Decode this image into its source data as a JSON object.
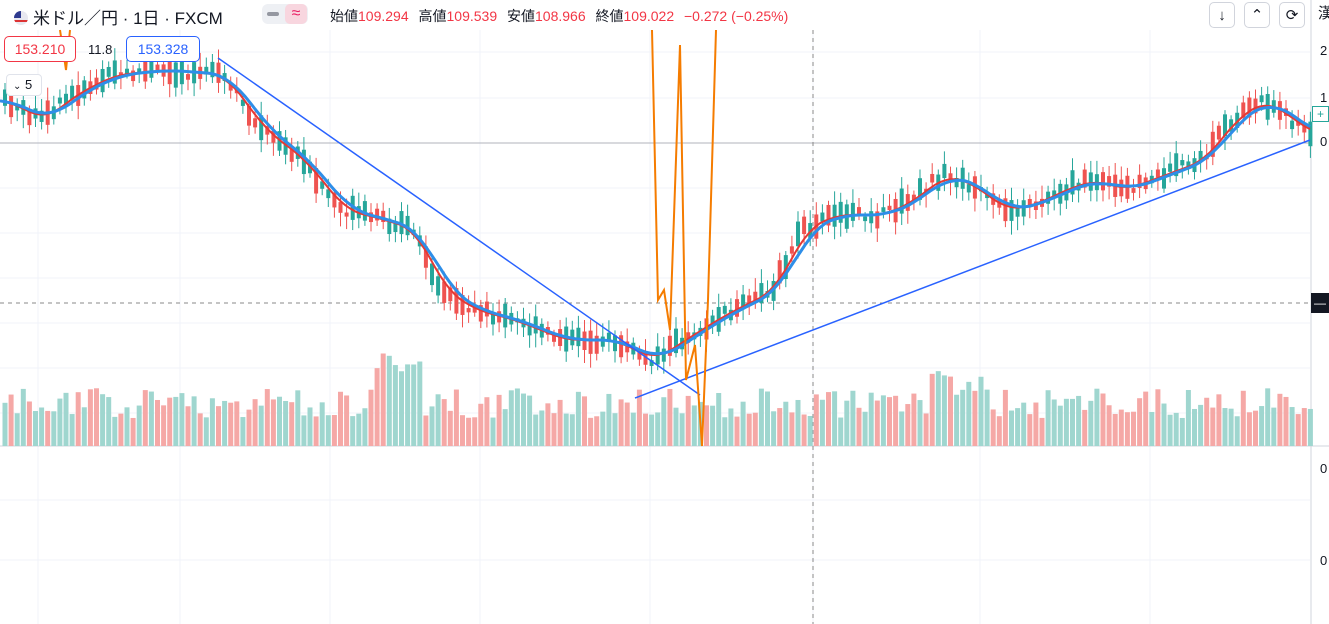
{
  "header": {
    "symbol_title": "米ドル／円 · 1日 · FXCM",
    "indicator_icon": "wave-icon",
    "ohlc": [
      {
        "label": "始値",
        "value": "109.294"
      },
      {
        "label": "高値",
        "value": "109.539"
      },
      {
        "label": "安値",
        "value": "108.966"
      },
      {
        "label": "終値",
        "value": "109.022"
      }
    ],
    "change": "−0.272 (−0.25%)",
    "corner_char": "漢"
  },
  "toolbar": {
    "download_icon": "arrow-down-icon",
    "collapse_icon": "collapse-icon",
    "refresh_icon": "refresh-icon"
  },
  "price_labels": {
    "sell": "153.210",
    "spread": "11.8",
    "buy": "153.328"
  },
  "interval_dropdown": {
    "value": "5"
  },
  "right_axis": {
    "labels": [
      "2",
      "1",
      "+",
      "0",
      "0",
      "0"
    ],
    "current_marker": "—"
  },
  "colors": {
    "up": "#26a69a",
    "down": "#ef5350",
    "ma_fast": "#e53935",
    "ma_slow": "#2e8ee8",
    "trendline": "#2962ff",
    "overlay": "#f57c00",
    "volume_up": "#9fd6cf",
    "volume_down": "#f5a8a6",
    "sell_label": "#f23645",
    "buy_label": "#2962ff"
  }
}
